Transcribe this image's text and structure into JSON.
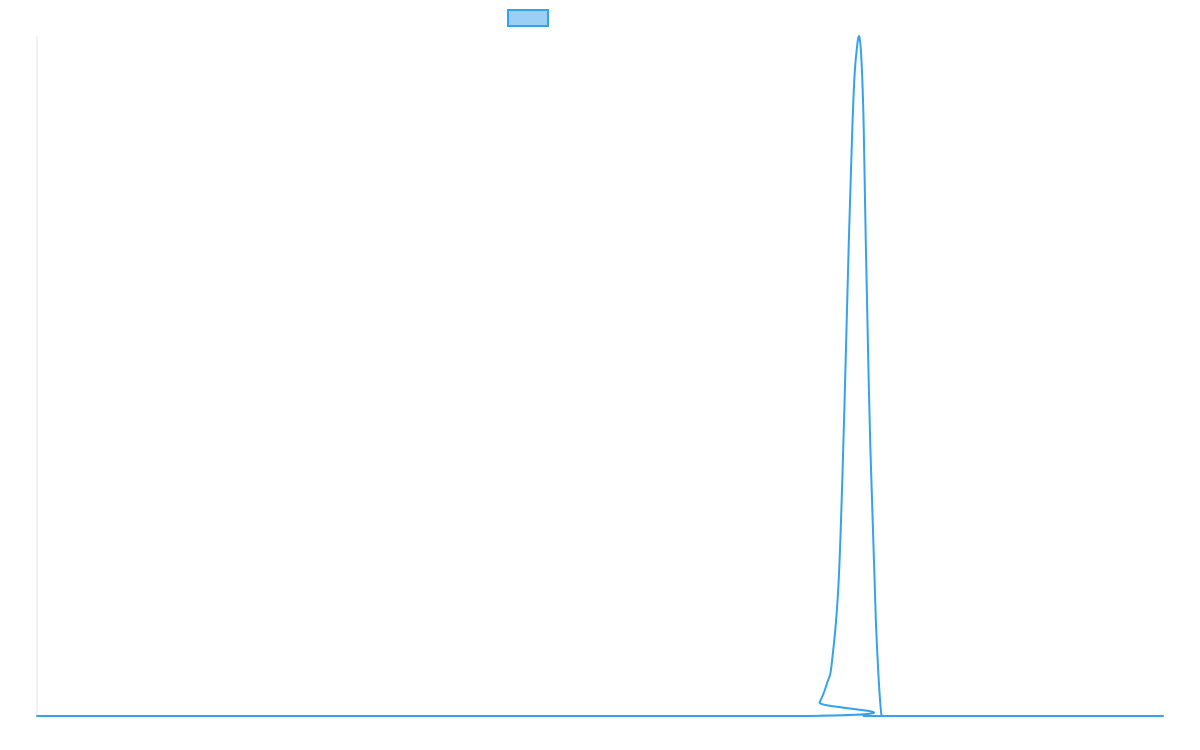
{
  "chart_data": {
    "type": "line",
    "title": "",
    "xlabel": "",
    "ylabel": "",
    "grid": false,
    "legend": {
      "placement": "top-center",
      "entries": [
        {
          "label": "",
          "swatch_color": "#9ad0f5",
          "border_color": "#36a2eb"
        }
      ]
    },
    "xlim": [
      0,
      100
    ],
    "ylim": [
      0,
      100
    ],
    "series": [
      {
        "color": "#36a2eb",
        "x": [
          0,
          68.6,
          69.5,
          70.2,
          70.6,
          71.2,
          71.7,
          72.1,
          72.4,
          72.6,
          72.8,
          73.0,
          73.2,
          73.4,
          73.6,
          74.0,
          74.5,
          75.0,
          75.5,
          100
        ],
        "y": [
          0,
          0,
          2,
          5,
          8,
          20,
          45,
          70,
          86,
          94,
          98,
          100,
          97,
          88,
          70,
          40,
          14,
          0,
          0,
          0
        ]
      }
    ]
  }
}
